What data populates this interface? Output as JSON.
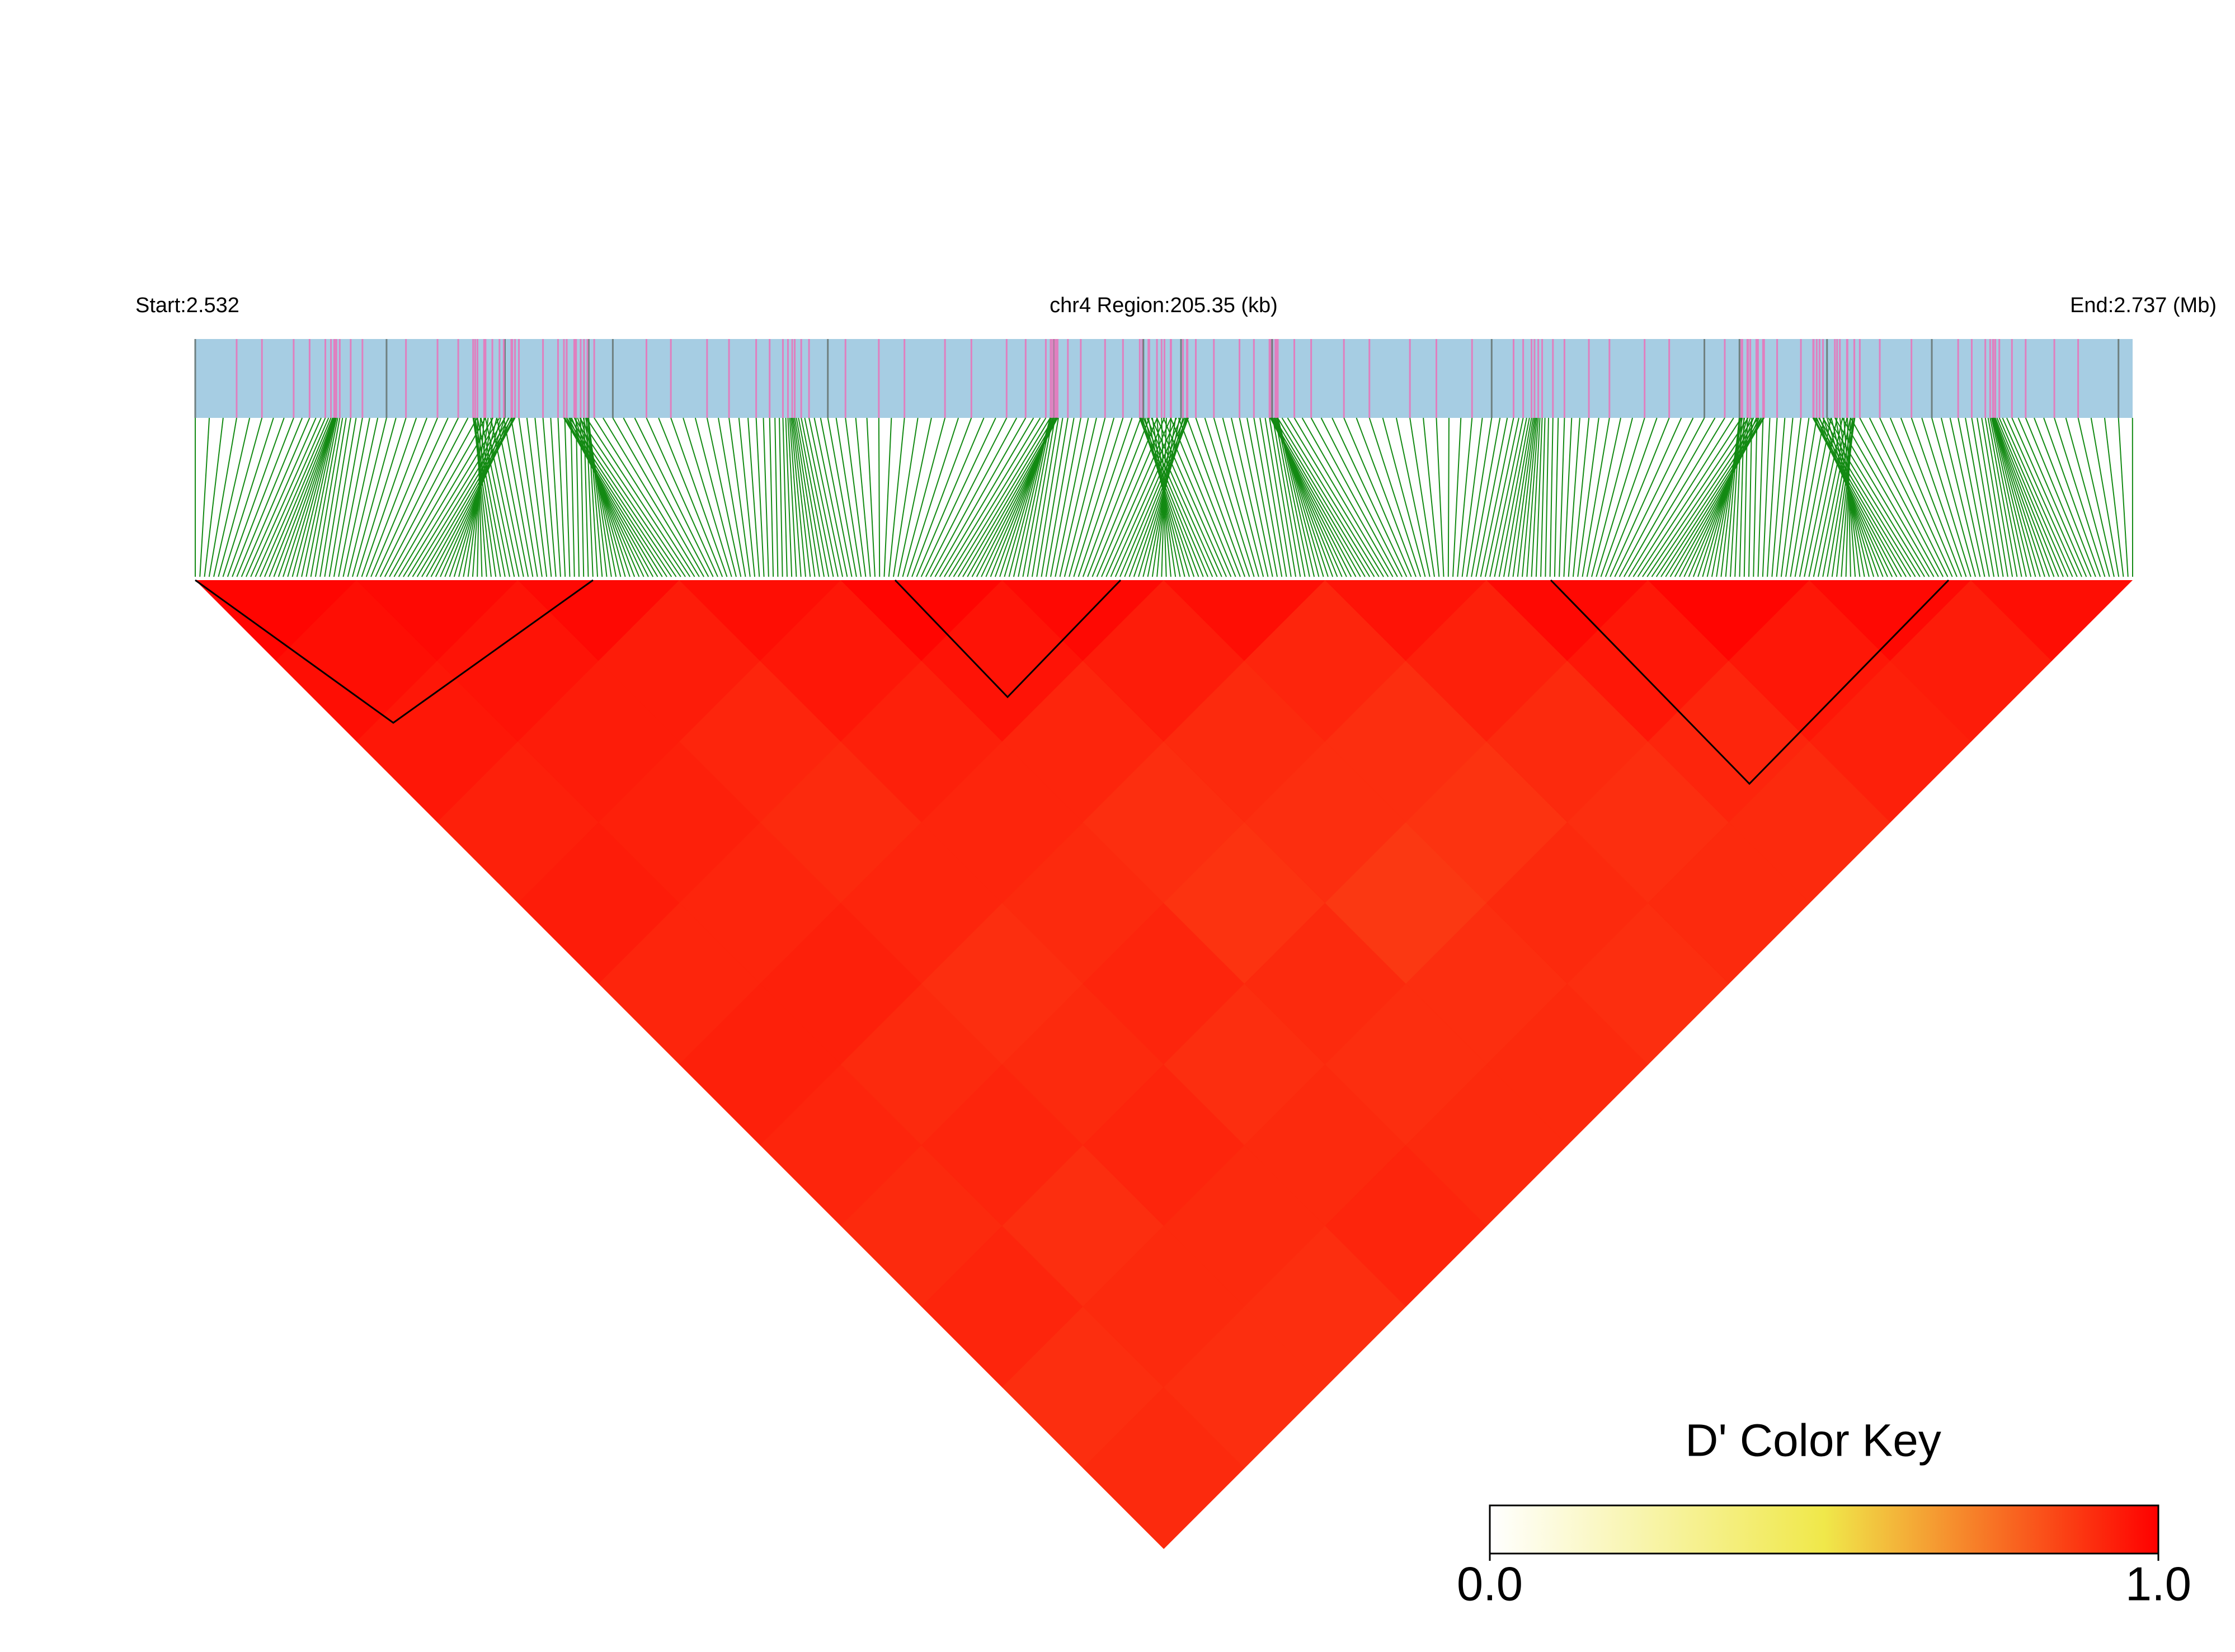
{
  "chart_data": {
    "type": "ld-heatmap",
    "start_label": "Start:2.532",
    "region_label": "chr4 Region:205.35 (kb)",
    "end_label": "End:2.737 (Mb)",
    "dprime": [
      [
        0.99,
        0.97,
        0.95,
        0.93,
        0.94,
        0.92,
        0.93,
        0.92,
        0.91,
        0.92,
        0.9,
        0.91
      ],
      [
        0.98,
        0.96,
        0.94,
        0.93,
        0.92,
        0.93,
        0.91,
        0.92,
        0.9,
        0.91,
        0.9
      ],
      [
        0.98,
        0.94,
        0.92,
        0.91,
        0.92,
        0.9,
        0.91,
        0.92,
        0.91,
        0.9
      ],
      [
        0.97,
        0.95,
        0.93,
        0.92,
        0.91,
        0.92,
        0.9,
        0.91,
        0.92
      ],
      [
        0.99,
        0.96,
        0.92,
        0.9,
        0.89,
        0.91,
        0.9,
        0.91
      ],
      [
        0.98,
        0.94,
        0.91,
        0.9,
        0.88,
        0.9,
        0.91
      ],
      [
        0.97,
        0.92,
        0.9,
        0.89,
        0.91,
        0.9
      ],
      [
        0.96,
        0.93,
        0.91,
        0.9,
        0.91
      ],
      [
        0.98,
        0.95,
        0.92,
        0.91
      ],
      [
        0.99,
        0.95,
        0.93
      ],
      [
        0.98,
        0.94
      ],
      [
        0.97
      ]
    ],
    "colors": [
      "#ffffff",
      "#f0e84a",
      "#ff0000"
    ],
    "color_key": {
      "title": "D' Color Key",
      "lim": [
        0,
        1
      ],
      "ticks": [
        {
          "value": 0,
          "label": "0.0"
        },
        {
          "value": 1,
          "label": "1.0"
        }
      ]
    }
  }
}
